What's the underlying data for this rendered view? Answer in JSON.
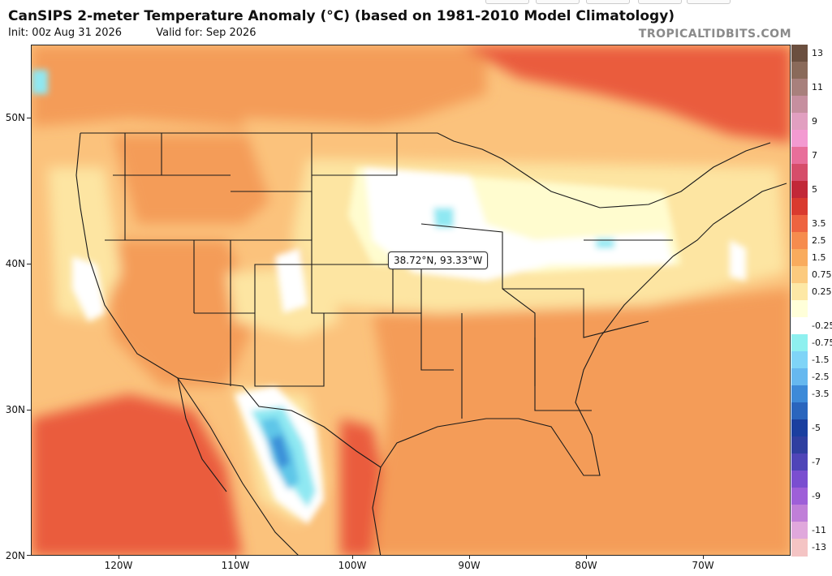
{
  "title": "CanSIPS 2-meter Temperature Anomaly (°C) (based on 1981-2010 Model Climatology)",
  "init_text": "Init: 00z Aug 31 2026",
  "valid_text": "Valid for: Sep 2026",
  "watermark": "TROPICALTIDBITS.COM",
  "tooltip": "38.72°N, 93.33°W",
  "map_bounds": {
    "lon_min": -127.5,
    "lon_max": -62.5,
    "lat_min": 20,
    "lat_max": 55
  },
  "lat_ticks": [
    {
      "value": 50,
      "label": "50N"
    },
    {
      "value": 40,
      "label": "40N"
    },
    {
      "value": 30,
      "label": "30N"
    },
    {
      "value": 20,
      "label": "20N"
    }
  ],
  "lon_ticks": [
    {
      "value": -120,
      "label": "120W"
    },
    {
      "value": -110,
      "label": "110W"
    },
    {
      "value": -100,
      "label": "100W"
    },
    {
      "value": -90,
      "label": "90W"
    },
    {
      "value": -80,
      "label": "80W"
    },
    {
      "value": -70,
      "label": "70W"
    }
  ],
  "colorbar": {
    "colors": [
      "#6b4f3f",
      "#8a6a5a",
      "#a8807c",
      "#c68f9f",
      "#e19fc0",
      "#f39ad1",
      "#e86e9a",
      "#d64d6a",
      "#c22838",
      "#d93a2f",
      "#ee6340",
      "#f68c4e",
      "#f9ab5d",
      "#fcca7e",
      "#fde8a6",
      "#ffffd9",
      "#ffffff",
      "#8ef0ef",
      "#7fd4f7",
      "#66b8ef",
      "#3d8ad8",
      "#2a65bd",
      "#1a3f9f",
      "#2f3fa0",
      "#4f45b8",
      "#7a4ed0",
      "#9e5fd8",
      "#c07fd8",
      "#e0a8dc",
      "#f4c4c4"
    ],
    "labels": [
      "13",
      "11",
      "9",
      "7",
      "5",
      "3.5",
      "2.5",
      "1.5",
      "0.75",
      "0.25",
      "-0.25",
      "-0.75",
      "-1.5",
      "-2.5",
      "-3.5",
      "-5",
      "-7",
      "-9",
      "-11",
      "-13"
    ]
  },
  "anomaly_colors": {
    "strong_warm": "#ea5c3d",
    "warm": "#f49c58",
    "mild": "#fbc27c",
    "slight": "#fde5a2",
    "near_zero": "#fffccf",
    "neutral": "#ffffff",
    "cool": "#8fe8f2",
    "cooler": "#5fc6e8",
    "cold": "#3a8fd8"
  }
}
